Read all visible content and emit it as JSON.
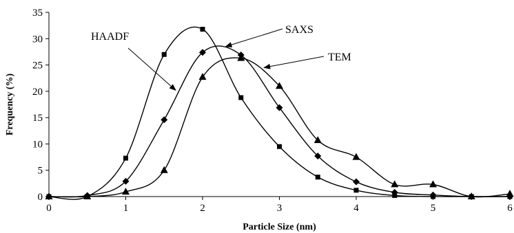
{
  "chart_data": {
    "type": "line",
    "title": "",
    "xlabel": "Particle Size (nm)",
    "ylabel": "Frequency (%)",
    "xlim": [
      0,
      6
    ],
    "ylim": [
      0,
      35
    ],
    "xticks": [
      0,
      1,
      2,
      3,
      4,
      5,
      6
    ],
    "yticks": [
      0,
      5,
      10,
      15,
      20,
      25,
      30,
      35
    ],
    "grid": false,
    "legend": "none (curves labeled by arrow annotations)",
    "series": [
      {
        "name": "HAADF",
        "marker": "square",
        "color": "#000000",
        "x": [
          0,
          0.5,
          1,
          1.5,
          2,
          2.5,
          3,
          3.5,
          4,
          4.5,
          5,
          5.5,
          6
        ],
        "y": [
          0,
          0,
          7.3,
          27,
          31.8,
          18.8,
          9.5,
          3.7,
          1.2,
          0.2,
          0,
          0,
          0
        ]
      },
      {
        "name": "SAXS",
        "marker": "diamond",
        "color": "#000000",
        "x": [
          0,
          0.5,
          1,
          1.5,
          2,
          2.5,
          3,
          3.5,
          4,
          4.5,
          5,
          5.5,
          6
        ],
        "y": [
          0,
          0.2,
          2.9,
          14.6,
          27.4,
          26.9,
          16.9,
          7.7,
          2.8,
          0.8,
          0.3,
          0,
          0
        ]
      },
      {
        "name": "TEM",
        "marker": "triangle",
        "color": "#000000",
        "x": [
          0,
          0.5,
          1,
          1.5,
          2,
          2.5,
          3,
          3.5,
          4,
          4.5,
          5,
          5.5,
          6
        ],
        "y": [
          0,
          0,
          0.9,
          5,
          22.7,
          26.3,
          21,
          10.7,
          7.5,
          2.3,
          2.3,
          0,
          0.5
        ]
      }
    ],
    "annotations": [
      {
        "text": "HAADF",
        "series": "HAADF",
        "x": 1.65,
        "y": 20.2
      },
      {
        "text": "SAXS",
        "series": "SAXS",
        "x": 2.3,
        "y": 28.5
      },
      {
        "text": "TEM",
        "series": "TEM",
        "x": 2.8,
        "y": 24.5
      }
    ]
  }
}
